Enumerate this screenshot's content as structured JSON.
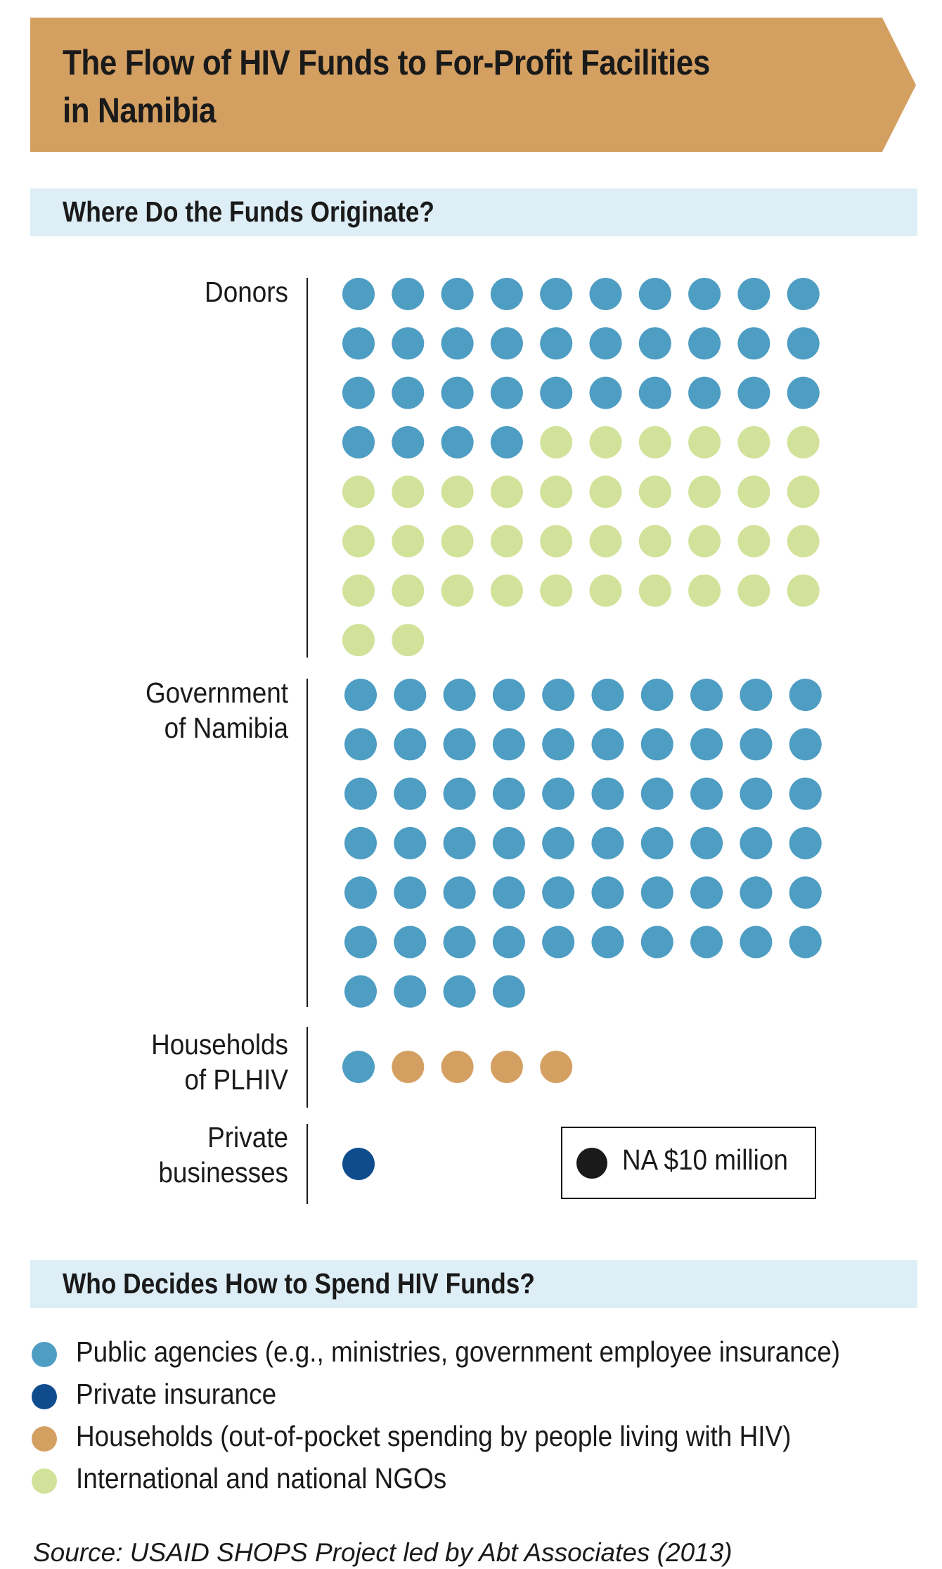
{
  "header": {
    "title_line1": "The Flow of HIV Funds to For-Profit Facilities",
    "title_line2": "in Namibia",
    "color": "#d4a062"
  },
  "section_origin": {
    "title": "Where Do the Funds Originate?"
  },
  "section_decide": {
    "title": "Who Decides How to Spend HIV Funds?"
  },
  "scale": {
    "label": "NA $10 million"
  },
  "colors": {
    "public": "#4e9dc3",
    "private_insurance": "#0f4c8e",
    "households": "#d4a062",
    "ngos": "#d3e29a",
    "section_bg": "#ddeef6"
  },
  "legend": [
    {
      "key": "public",
      "label": "Public agencies (e.g., ministries, government employee insurance)"
    },
    {
      "key": "private_insurance",
      "label": "Private insurance"
    },
    {
      "key": "households",
      "label": "Households (out-of-pocket spending by people living with HIV)"
    },
    {
      "key": "ngos",
      "label": "International and national NGOs"
    }
  ],
  "source": "Source: USAID SHOPS Project led by Abt Associates (2013)",
  "chart_data": {
    "type": "waffle",
    "title": "Where Do the Funds Originate?",
    "unit": "NA $10 million",
    "categories": [
      "Donors",
      "Government\nof Namibia",
      "Households\nof PLHIV",
      "Private\nbusinesses"
    ],
    "series": [
      {
        "name": "Public agencies (e.g., ministries, government employee insurance)",
        "key": "public",
        "values": [
          34,
          64,
          1,
          0
        ]
      },
      {
        "name": "Private insurance",
        "key": "private_insurance",
        "values": [
          0,
          0,
          0,
          1
        ]
      },
      {
        "name": "Households (out-of-pocket spending by people living with HIV)",
        "key": "households",
        "values": [
          0,
          0,
          4,
          0
        ]
      },
      {
        "name": "International and national NGOs",
        "key": "ngos",
        "values": [
          38,
          0,
          0,
          0
        ]
      }
    ]
  }
}
